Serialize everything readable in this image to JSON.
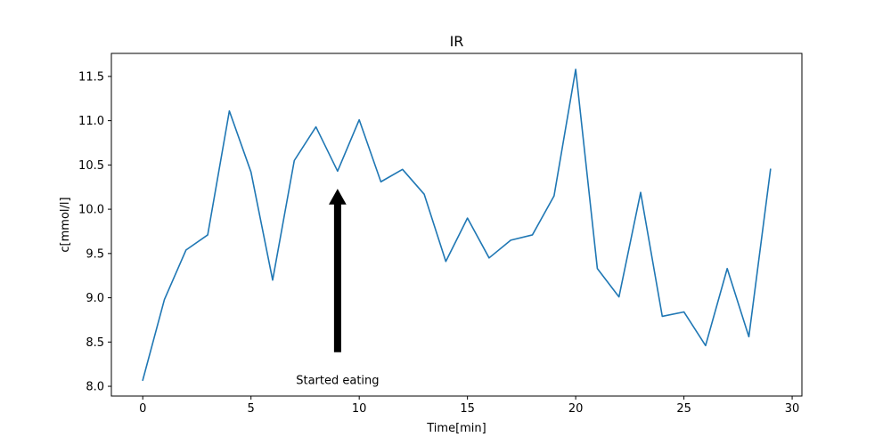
{
  "chart_data": {
    "type": "line",
    "title": "IR",
    "xlabel": "Time[min]",
    "ylabel": "c[mmol/l]",
    "xlim": [
      -1.45,
      30.45
    ],
    "ylim": [
      7.89,
      11.76
    ],
    "xticks": [
      0,
      5,
      10,
      15,
      20,
      25,
      30
    ],
    "yticks": [
      8.0,
      8.5,
      9.0,
      9.5,
      10.0,
      10.5,
      11.0,
      11.5
    ],
    "xtick_labels": [
      "0",
      "5",
      "10",
      "15",
      "20",
      "25",
      "30"
    ],
    "ytick_labels": [
      "8.0",
      "8.5",
      "9.0",
      "9.5",
      "10.0",
      "10.5",
      "11.0",
      "11.5"
    ],
    "grid": false,
    "series": [
      {
        "color": "#1f77b4",
        "x": [
          0,
          1,
          2,
          3,
          4,
          5,
          6,
          7,
          8,
          9,
          10,
          11,
          12,
          13,
          14,
          15,
          16,
          17,
          18,
          19,
          20,
          21,
          22,
          23,
          24,
          25,
          26,
          27,
          28,
          29
        ],
        "values": [
          8.07,
          8.98,
          9.54,
          9.71,
          11.11,
          10.42,
          9.2,
          10.55,
          10.93,
          10.43,
          11.01,
          10.31,
          10.45,
          10.17,
          9.41,
          9.9,
          9.45,
          9.65,
          9.71,
          10.15,
          11.58,
          9.33,
          9.01,
          10.19,
          8.79,
          8.84,
          8.46,
          9.33,
          8.56,
          10.45
        ]
      }
    ],
    "annotations": [
      {
        "text": "Started eating",
        "arrow_from": [
          9,
          8.39
        ],
        "arrow_to": [
          9,
          10.22
        ],
        "text_at": [
          9,
          8.07
        ],
        "color": "#000000"
      }
    ]
  }
}
